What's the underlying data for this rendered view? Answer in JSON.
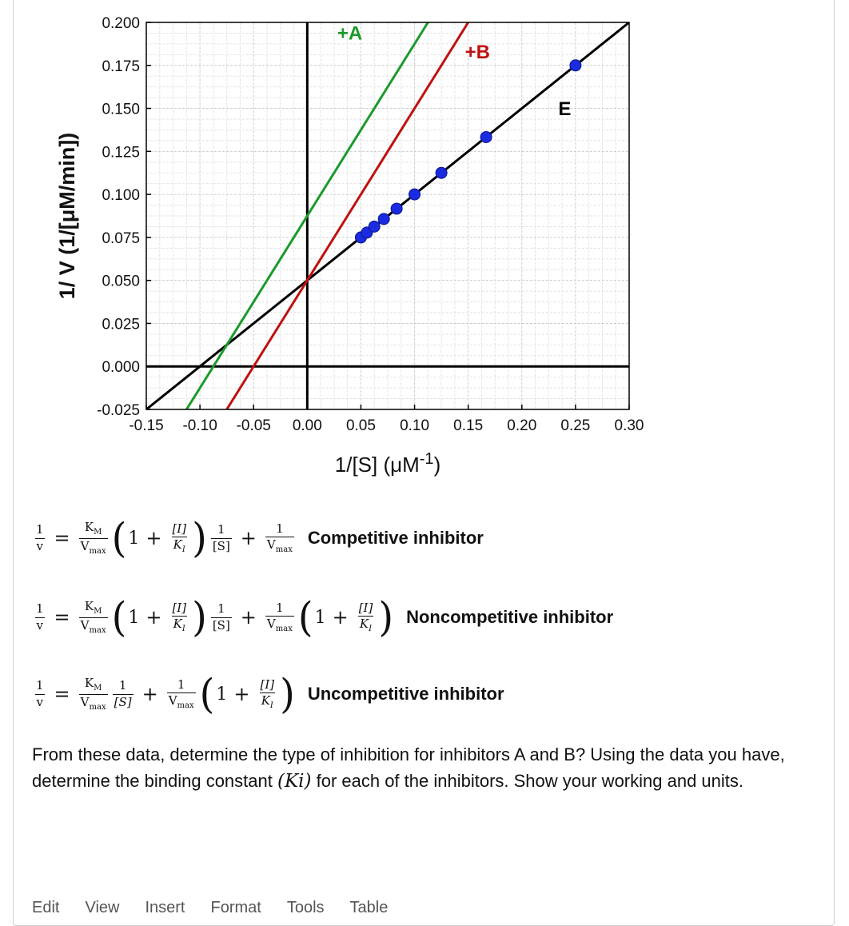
{
  "chart_data": {
    "type": "line",
    "title": "",
    "xlabel": "1/[S] (μM",
    "xlabel_sup": "-1",
    "xlabel_close": ")",
    "ylabel": "1/ V (1/[μM/min])",
    "xlim": [
      -0.15,
      0.3
    ],
    "ylim": [
      -0.025,
      0.2
    ],
    "grid": true,
    "x_ticks": [
      -0.15,
      -0.1,
      -0.05,
      0.0,
      0.05,
      0.1,
      0.15,
      0.2,
      0.25,
      0.3
    ],
    "x_tick_labels": [
      "-0.15",
      "-0.10",
      "-0.05",
      "0.00",
      "0.05",
      "0.10",
      "0.15",
      "0.20",
      "0.25",
      "0.30"
    ],
    "y_ticks": [
      -0.025,
      0.0,
      0.025,
      0.05,
      0.075,
      0.1,
      0.125,
      0.15,
      0.175,
      0.2
    ],
    "y_tick_labels": [
      "-0.025",
      "0.000",
      "0.025",
      "0.050",
      "0.075",
      "0.100",
      "0.125",
      "0.150",
      "0.175",
      "0.200"
    ],
    "series": [
      {
        "name": "E",
        "kind": "line",
        "color": "#000000",
        "x": [
          -0.15,
          0.3
        ],
        "y": [
          -0.025,
          0.2
        ]
      },
      {
        "name": "+A",
        "kind": "line",
        "color": "#1a9a2a",
        "x": [
          -0.15,
          0.3
        ],
        "y": [
          -0.0625,
          0.3875
        ]
      },
      {
        "name": "+B",
        "kind": "line",
        "color": "#c01010",
        "x": [
          -0.15,
          0.3
        ],
        "y": [
          -0.1,
          0.35
        ]
      },
      {
        "name": "E data",
        "kind": "scatter",
        "color": "#1a2be0",
        "x": [
          0.05,
          0.0556,
          0.0625,
          0.0714,
          0.0833,
          0.1,
          0.125,
          0.1667,
          0.25
        ],
        "y": [
          0.075,
          0.0778,
          0.0813,
          0.0857,
          0.0917,
          0.1,
          0.1125,
          0.1333,
          0.175
        ]
      }
    ],
    "annotations": [
      {
        "text": "+A",
        "color": "#1a9a2a",
        "x": 0.028,
        "y": 0.19
      },
      {
        "text": "+B",
        "color": "#c01010",
        "x": 0.147,
        "y": 0.179
      },
      {
        "text": "E",
        "color": "#000000",
        "x": 0.234,
        "y": 0.146
      }
    ]
  },
  "equations": {
    "v_one": "1",
    "v_sym": "v",
    "eq_sign": "=",
    "plus": "+",
    "km": "K",
    "km_sub": "M",
    "vmax": "V",
    "vmax_sub": "max",
    "one": "1",
    "inh": "[I]",
    "ki": "K",
    "ki_sub": "I",
    "s_bracket": "[S]",
    "s_italic": "[S]",
    "paren_open": "(",
    "paren_close": ")",
    "competitive_label": "Competitive inhibitor",
    "noncompetitive_label": "Noncompetitive inhibitor",
    "uncompetitive_label": "Uncompetitive inhibitor"
  },
  "question": {
    "part1": "From these data, determine the type of inhibition for inhibitors A and B? Using the data you have, determine the binding constant ",
    "ki_symbol": "(Ki)",
    "part2": " for each of the inhibitors. Show your working and units."
  },
  "menubar": {
    "items": [
      "Edit",
      "View",
      "Insert",
      "Format",
      "Tools",
      "Table"
    ]
  }
}
